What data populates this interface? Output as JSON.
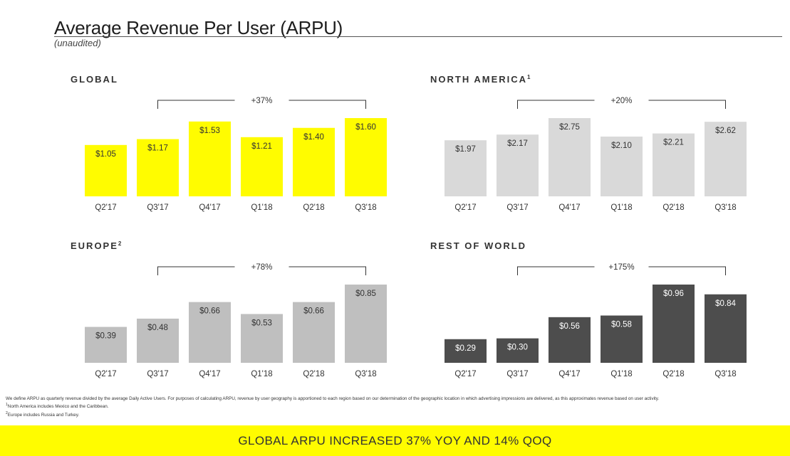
{
  "header": {
    "title": "Average Revenue Per User (ARPU)",
    "subtitle": "(unaudited)"
  },
  "chart_data": [
    {
      "type": "bar",
      "title": "GLOBAL",
      "title_sup": "",
      "color": "#fffc00",
      "label_color": "#333333",
      "categories": [
        "Q2'17",
        "Q3'17",
        "Q4'17",
        "Q1'18",
        "Q2'18",
        "Q3'18"
      ],
      "values": [
        1.05,
        1.17,
        1.53,
        1.21,
        1.4,
        1.6
      ],
      "labels": [
        "$1.05",
        "$1.17",
        "$1.53",
        "$1.21",
        "$1.40",
        "$1.60"
      ],
      "growth_label": "+37%",
      "growth_from": "Q3'17",
      "growth_to": "Q3'18"
    },
    {
      "type": "bar",
      "title": "NORTH AMERICA",
      "title_sup": "1",
      "color": "#d9d9d9",
      "label_color": "#333333",
      "categories": [
        "Q2'17",
        "Q3'17",
        "Q4'17",
        "Q1'18",
        "Q2'18",
        "Q3'18"
      ],
      "values": [
        1.97,
        2.17,
        2.75,
        2.1,
        2.21,
        2.62
      ],
      "labels": [
        "$1.97",
        "$2.17",
        "$2.75",
        "$2.10",
        "$2.21",
        "$2.62"
      ],
      "growth_label": "+20%",
      "growth_from": "Q3'17",
      "growth_to": "Q3'18"
    },
    {
      "type": "bar",
      "title": "EUROPE",
      "title_sup": "2",
      "color": "#bfbfbf",
      "label_color": "#333333",
      "categories": [
        "Q2'17",
        "Q3'17",
        "Q4'17",
        "Q1'18",
        "Q2'18",
        "Q3'18"
      ],
      "values": [
        0.39,
        0.48,
        0.66,
        0.53,
        0.66,
        0.85
      ],
      "labels": [
        "$0.39",
        "$0.48",
        "$0.66",
        "$0.53",
        "$0.66",
        "$0.85"
      ],
      "growth_label": "+78%",
      "growth_from": "Q3'17",
      "growth_to": "Q3'18"
    },
    {
      "type": "bar",
      "title": "REST OF WORLD",
      "title_sup": "",
      "color": "#4d4d4d",
      "label_color": "#ffffff",
      "categories": [
        "Q2'17",
        "Q3'17",
        "Q4'17",
        "Q1'18",
        "Q2'18",
        "Q3'18"
      ],
      "values": [
        0.29,
        0.3,
        0.56,
        0.58,
        0.96,
        0.84
      ],
      "labels": [
        "$0.29",
        "$0.30",
        "$0.56",
        "$0.58",
        "$0.96",
        "$0.84"
      ],
      "growth_label": "+175%",
      "growth_from": "Q3'17",
      "growth_to": "Q3'18"
    }
  ],
  "footnotes": {
    "definition": "We define ARPU as quarterly revenue divided by the average Daily Active Users. For purposes of calculating ARPU, revenue by user geography is apportioned to each region based on our determination of the geographic location in which advertising impressions are delivered, as this approximates revenue based on user activity.",
    "note1_mark": "1",
    "note1": "North America includes Mexico and the Caribbean.",
    "note2_mark": "2",
    "note2": "Europe includes Russia and Turkey."
  },
  "banner": {
    "text": "GLOBAL ARPU INCREASED 37% YOY AND 14% QOQ",
    "color": "#fffc00"
  }
}
